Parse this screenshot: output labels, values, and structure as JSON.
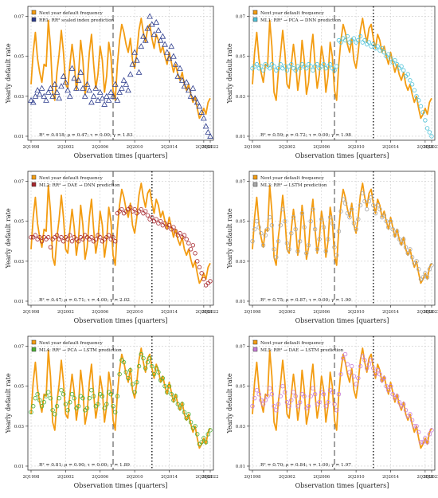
{
  "figure": {
    "ylabel": "Yearly default rate",
    "xlabel": "Observation times [quarters]"
  },
  "colors": {
    "actual": "#F39C12",
    "rr1": "#2B3A8C",
    "ml1": "#4FC3D9",
    "ml2": "#A6262C",
    "ml3": "#A8A8A8",
    "ml4": "#4CAF35",
    "ml5": "#C77BD6"
  },
  "chart_data": [
    {
      "type": "line",
      "panel": "RR1",
      "legend": [
        "Next year default frequency",
        "RR1: RR² scaled index prediction"
      ],
      "stats": "R² = 0.018; ρ = 0.47; τ = 0.00; γ = 1.83",
      "xticks": [
        "2Q1998",
        "2Q2002",
        "2Q2006",
        "2Q2010",
        "2Q2014",
        "2Q2018",
        "2Q2022"
      ],
      "yticks": [
        "0.01",
        "0.03",
        "0.05",
        "0.07"
      ],
      "ylim": [
        0.008,
        0.075
      ],
      "marker": "triangle",
      "show_dotted": false,
      "actual": [
        0.036,
        0.052,
        0.062,
        0.049,
        0.042,
        0.037,
        0.046,
        0.045,
        0.068,
        0.055,
        0.032,
        0.028,
        0.042,
        0.051,
        0.063,
        0.052,
        0.036,
        0.034,
        0.046,
        0.056,
        0.047,
        0.033,
        0.041,
        0.058,
        0.048,
        0.031,
        0.037,
        0.052,
        0.061,
        0.046,
        0.034,
        0.041,
        0.055,
        0.048,
        0.032,
        0.04,
        0.057,
        0.05,
        0.033,
        0.028,
        0.046,
        0.058,
        0.066,
        0.062,
        0.056,
        0.052,
        0.059,
        0.048,
        0.044,
        0.052,
        0.063,
        0.069,
        0.062,
        0.057,
        0.064,
        0.066,
        0.059,
        0.054,
        0.061,
        0.058,
        0.052,
        0.055,
        0.05,
        0.046,
        0.052,
        0.047,
        0.042,
        0.046,
        0.041,
        0.038,
        0.042,
        0.036,
        0.033,
        0.036,
        0.031,
        0.027,
        0.03,
        0.024,
        0.019,
        0.021,
        0.024,
        0.021,
        0.027,
        0.029
      ],
      "pred": [
        0.028,
        0.027,
        0.03,
        0.033,
        0.031,
        0.034,
        0.03,
        0.028,
        0.032,
        0.034,
        0.03,
        0.036,
        0.032,
        0.029,
        0.035,
        0.04,
        0.037,
        0.033,
        0.03,
        0.044,
        0.039,
        0.034,
        0.038,
        0.042,
        0.034,
        0.03,
        0.036,
        0.033,
        0.027,
        0.03,
        0.034,
        0.028,
        0.032,
        0.029,
        0.026,
        0.03,
        0.028,
        0.032,
        0.03,
        0.036,
        0.028,
        0.032,
        0.034,
        0.038,
        0.036,
        0.033,
        0.041,
        0.046,
        0.052,
        0.048,
        0.042,
        0.055,
        0.06,
        0.058,
        0.064,
        0.07,
        0.066,
        0.061,
        0.067,
        0.063,
        0.058,
        0.06,
        0.056,
        0.052,
        0.049,
        0.055,
        0.05,
        0.046,
        0.04,
        0.044,
        0.038,
        0.035,
        0.037,
        0.033,
        0.03,
        0.034,
        0.029,
        0.027,
        0.025,
        0.022,
        0.019,
        0.015,
        0.012,
        0.01
      ]
    },
    {
      "type": "line",
      "panel": "ML1",
      "legend": [
        "Next year default frequency",
        "ML1: RR² → PCA → DNN prediction"
      ],
      "stats": "R² = 0.59; ρ = 0.72; τ = 0.00; γ = 1.98",
      "xticks": [
        "2Q1998",
        "2Q2002",
        "2Q2006",
        "2Q2010",
        "2Q2014",
        "2Q2018",
        "2Q2022"
      ],
      "yticks": [
        "0.01",
        "0.03",
        "0.05",
        "0.07"
      ],
      "ylim": [
        0.008,
        0.075
      ],
      "marker": "circle",
      "show_dotted": true,
      "actual": [
        0.036,
        0.052,
        0.062,
        0.049,
        0.042,
        0.037,
        0.046,
        0.045,
        0.068,
        0.055,
        0.032,
        0.028,
        0.042,
        0.051,
        0.063,
        0.052,
        0.036,
        0.034,
        0.046,
        0.056,
        0.047,
        0.033,
        0.041,
        0.058,
        0.048,
        0.031,
        0.037,
        0.052,
        0.061,
        0.046,
        0.034,
        0.041,
        0.055,
        0.048,
        0.032,
        0.04,
        0.057,
        0.05,
        0.033,
        0.028,
        0.046,
        0.058,
        0.066,
        0.062,
        0.056,
        0.052,
        0.059,
        0.048,
        0.044,
        0.052,
        0.063,
        0.069,
        0.062,
        0.057,
        0.064,
        0.066,
        0.059,
        0.054,
        0.061,
        0.058,
        0.052,
        0.055,
        0.05,
        0.046,
        0.052,
        0.047,
        0.042,
        0.046,
        0.041,
        0.038,
        0.042,
        0.036,
        0.033,
        0.036,
        0.031,
        0.027,
        0.03,
        0.024,
        0.019,
        0.021,
        0.024,
        0.021,
        0.027,
        0.029
      ],
      "pred": [
        0.044,
        0.045,
        0.046,
        0.044,
        0.045,
        0.043,
        0.046,
        0.045,
        0.044,
        0.046,
        0.045,
        0.043,
        0.044,
        0.046,
        0.044,
        0.045,
        0.043,
        0.045,
        0.046,
        0.044,
        0.043,
        0.045,
        0.044,
        0.046,
        0.045,
        0.044,
        0.046,
        0.045,
        0.043,
        0.045,
        0.046,
        0.044,
        0.045,
        0.046,
        0.044,
        0.045,
        0.046,
        0.044,
        0.043,
        0.045,
        0.058,
        0.057,
        0.059,
        0.058,
        0.06,
        0.057,
        0.058,
        0.059,
        0.057,
        0.058,
        0.06,
        0.057,
        0.058,
        0.056,
        0.057,
        0.055,
        0.056,
        0.054,
        0.055,
        0.053,
        0.054,
        0.052,
        0.05,
        0.051,
        0.049,
        0.047,
        0.048,
        0.046,
        0.044,
        0.045,
        0.043,
        0.04,
        0.041,
        0.038,
        0.036,
        0.033,
        0.03,
        0.028,
        0.025,
        0.022,
        0.018,
        0.014,
        0.012,
        0.01
      ]
    },
    {
      "type": "line",
      "panel": "ML2",
      "legend": [
        "Next year default frequency",
        "ML2: RR² → DAE → DNN prediction"
      ],
      "stats": "R² = 0.47; ρ = 0.71; τ = 4.00; γ = 2.02",
      "xticks": [
        "2Q1998",
        "2Q2002",
        "2Q2006",
        "2Q2010",
        "2Q2014",
        "2Q2018",
        "2Q2022"
      ],
      "yticks": [
        "0.01",
        "0.03",
        "0.05",
        "0.07"
      ],
      "ylim": [
        0.008,
        0.075
      ],
      "marker": "circle",
      "show_dotted": true,
      "actual": [
        0.036,
        0.052,
        0.062,
        0.049,
        0.042,
        0.037,
        0.046,
        0.045,
        0.068,
        0.055,
        0.032,
        0.028,
        0.042,
        0.051,
        0.063,
        0.052,
        0.036,
        0.034,
        0.046,
        0.056,
        0.047,
        0.033,
        0.041,
        0.058,
        0.048,
        0.031,
        0.037,
        0.052,
        0.061,
        0.046,
        0.034,
        0.041,
        0.055,
        0.048,
        0.032,
        0.04,
        0.057,
        0.05,
        0.033,
        0.028,
        0.046,
        0.058,
        0.066,
        0.062,
        0.056,
        0.052,
        0.059,
        0.048,
        0.044,
        0.052,
        0.063,
        0.069,
        0.062,
        0.057,
        0.064,
        0.066,
        0.059,
        0.054,
        0.061,
        0.058,
        0.052,
        0.055,
        0.05,
        0.046,
        0.052,
        0.047,
        0.042,
        0.046,
        0.041,
        0.038,
        0.042,
        0.036,
        0.033,
        0.036,
        0.031,
        0.027,
        0.03,
        0.024,
        0.019,
        0.021,
        0.024,
        0.021,
        0.027,
        0.029
      ],
      "pred": [
        0.042,
        0.042,
        0.043,
        0.041,
        0.042,
        0.04,
        0.042,
        0.041,
        0.042,
        0.037,
        0.041,
        0.042,
        0.043,
        0.041,
        0.042,
        0.04,
        0.042,
        0.041,
        0.043,
        0.04,
        0.042,
        0.041,
        0.04,
        0.042,
        0.041,
        0.043,
        0.042,
        0.041,
        0.042,
        0.04,
        0.041,
        0.043,
        0.042,
        0.04,
        0.041,
        0.042,
        0.043,
        0.041,
        0.042,
        0.04,
        0.054,
        0.055,
        0.056,
        0.054,
        0.055,
        0.056,
        0.057,
        0.055,
        0.056,
        0.054,
        0.055,
        0.056,
        0.054,
        0.055,
        0.053,
        0.051,
        0.052,
        0.05,
        0.051,
        0.049,
        0.05,
        0.048,
        0.049,
        0.047,
        0.048,
        0.046,
        0.047,
        0.045,
        0.043,
        0.044,
        0.042,
        0.043,
        0.041,
        0.039,
        0.036,
        0.038,
        0.034,
        0.03,
        0.027,
        0.024,
        0.021,
        0.018,
        0.019,
        0.02
      ]
    },
    {
      "type": "line",
      "panel": "ML3",
      "legend": [
        "Next year default frequency",
        "ML3: RR² → LSTM prediction"
      ],
      "stats": "R² = 0.75; ρ = 0.87; τ = 0.00; γ = 1.90",
      "xticks": [
        "2Q1998",
        "2Q2002",
        "2Q2006",
        "2Q2010",
        "2Q2014",
        "2Q2018",
        "2Q2022"
      ],
      "yticks": [
        "0.01",
        "0.03",
        "0.05",
        "0.07"
      ],
      "ylim": [
        0.008,
        0.075
      ],
      "marker": "circle",
      "show_dotted": true,
      "actual": [
        0.036,
        0.052,
        0.062,
        0.049,
        0.042,
        0.037,
        0.046,
        0.045,
        0.068,
        0.055,
        0.032,
        0.028,
        0.042,
        0.051,
        0.063,
        0.052,
        0.036,
        0.034,
        0.046,
        0.056,
        0.047,
        0.033,
        0.041,
        0.058,
        0.048,
        0.031,
        0.037,
        0.052,
        0.061,
        0.046,
        0.034,
        0.041,
        0.055,
        0.048,
        0.032,
        0.04,
        0.057,
        0.05,
        0.033,
        0.028,
        0.046,
        0.058,
        0.066,
        0.062,
        0.056,
        0.052,
        0.059,
        0.048,
        0.044,
        0.052,
        0.063,
        0.069,
        0.062,
        0.057,
        0.064,
        0.066,
        0.059,
        0.054,
        0.061,
        0.058,
        0.052,
        0.055,
        0.05,
        0.046,
        0.052,
        0.047,
        0.042,
        0.046,
        0.041,
        0.038,
        0.042,
        0.036,
        0.033,
        0.036,
        0.031,
        0.027,
        0.03,
        0.024,
        0.019,
        0.021,
        0.024,
        0.021,
        0.027,
        0.029
      ],
      "pred": [
        0.04,
        0.046,
        0.05,
        0.047,
        0.044,
        0.038,
        0.043,
        0.046,
        0.052,
        0.048,
        0.036,
        0.032,
        0.04,
        0.048,
        0.056,
        0.05,
        0.039,
        0.036,
        0.044,
        0.052,
        0.046,
        0.035,
        0.04,
        0.054,
        0.047,
        0.034,
        0.038,
        0.05,
        0.056,
        0.046,
        0.036,
        0.041,
        0.051,
        0.047,
        0.035,
        0.041,
        0.052,
        0.049,
        0.037,
        0.033,
        0.045,
        0.055,
        0.061,
        0.059,
        0.054,
        0.052,
        0.056,
        0.049,
        0.046,
        0.051,
        0.058,
        0.064,
        0.06,
        0.056,
        0.06,
        0.062,
        0.058,
        0.054,
        0.058,
        0.056,
        0.052,
        0.053,
        0.05,
        0.047,
        0.05,
        0.046,
        0.043,
        0.045,
        0.041,
        0.039,
        0.041,
        0.037,
        0.034,
        0.036,
        0.032,
        0.029,
        0.03,
        0.026,
        0.021,
        0.022,
        0.024,
        0.022,
        0.026,
        0.028
      ]
    },
    {
      "type": "line",
      "panel": "ML4",
      "legend": [
        "Next year default frequency",
        "ML4: RR² → PCA → LSTM prediction"
      ],
      "stats": "R² = 0.81; ρ = 0.90; τ = 0.00; γ = 1.89",
      "xticks": [
        "2Q1998",
        "2Q2002",
        "2Q2006",
        "2Q2010",
        "2Q2014",
        "2Q2018",
        "2Q2022"
      ],
      "yticks": [
        "0.01",
        "0.03",
        "0.05",
        "0.07"
      ],
      "ylim": [
        0.008,
        0.075
      ],
      "marker": "circle",
      "show_dotted": true,
      "actual": [
        0.036,
        0.052,
        0.062,
        0.049,
        0.042,
        0.037,
        0.046,
        0.045,
        0.068,
        0.055,
        0.032,
        0.028,
        0.042,
        0.051,
        0.063,
        0.052,
        0.036,
        0.034,
        0.046,
        0.056,
        0.047,
        0.033,
        0.041,
        0.058,
        0.048,
        0.031,
        0.037,
        0.052,
        0.061,
        0.046,
        0.034,
        0.041,
        0.055,
        0.048,
        0.032,
        0.04,
        0.057,
        0.05,
        0.033,
        0.028,
        0.046,
        0.058,
        0.066,
        0.062,
        0.056,
        0.052,
        0.059,
        0.048,
        0.044,
        0.052,
        0.063,
        0.069,
        0.062,
        0.057,
        0.064,
        0.066,
        0.059,
        0.054,
        0.061,
        0.058,
        0.052,
        0.055,
        0.05,
        0.046,
        0.052,
        0.047,
        0.042,
        0.046,
        0.041,
        0.038,
        0.042,
        0.036,
        0.033,
        0.036,
        0.031,
        0.027,
        0.03,
        0.024,
        0.019,
        0.021,
        0.024,
        0.021,
        0.027,
        0.029
      ],
      "pred": [
        0.037,
        0.04,
        0.044,
        0.046,
        0.043,
        0.04,
        0.042,
        0.045,
        0.047,
        0.044,
        0.038,
        0.036,
        0.04,
        0.044,
        0.048,
        0.046,
        0.041,
        0.038,
        0.042,
        0.046,
        0.044,
        0.039,
        0.04,
        0.045,
        0.044,
        0.038,
        0.039,
        0.044,
        0.048,
        0.045,
        0.04,
        0.041,
        0.046,
        0.045,
        0.039,
        0.041,
        0.047,
        0.046,
        0.04,
        0.037,
        0.045,
        0.056,
        0.063,
        0.062,
        0.057,
        0.054,
        0.058,
        0.051,
        0.047,
        0.052,
        0.06,
        0.066,
        0.064,
        0.059,
        0.062,
        0.064,
        0.06,
        0.056,
        0.059,
        0.057,
        0.053,
        0.054,
        0.05,
        0.047,
        0.05,
        0.046,
        0.043,
        0.045,
        0.041,
        0.039,
        0.041,
        0.037,
        0.034,
        0.036,
        0.032,
        0.029,
        0.03,
        0.026,
        0.021,
        0.022,
        0.024,
        0.022,
        0.026,
        0.028
      ]
    },
    {
      "type": "line",
      "panel": "ML5",
      "legend": [
        "Next year default frequency",
        "ML5: RR² → DAE → LSTM prediction"
      ],
      "stats": "R² = 0.70; ρ = 0.84; τ = 1.00; γ = 1.97",
      "xticks": [
        "2Q1998",
        "2Q2002",
        "2Q2006",
        "2Q2010",
        "2Q2014",
        "2Q2018",
        "2Q2022"
      ],
      "yticks": [
        "0.01",
        "0.03",
        "0.05",
        "0.07"
      ],
      "ylim": [
        0.008,
        0.075
      ],
      "marker": "circle",
      "show_dotted": true,
      "actual": [
        0.036,
        0.052,
        0.062,
        0.049,
        0.042,
        0.037,
        0.046,
        0.045,
        0.068,
        0.055,
        0.032,
        0.028,
        0.042,
        0.051,
        0.063,
        0.052,
        0.036,
        0.034,
        0.046,
        0.056,
        0.047,
        0.033,
        0.041,
        0.058,
        0.048,
        0.031,
        0.037,
        0.052,
        0.061,
        0.046,
        0.034,
        0.041,
        0.055,
        0.048,
        0.032,
        0.04,
        0.057,
        0.05,
        0.033,
        0.028,
        0.046,
        0.058,
        0.066,
        0.062,
        0.056,
        0.052,
        0.059,
        0.048,
        0.044,
        0.052,
        0.063,
        0.069,
        0.062,
        0.057,
        0.064,
        0.066,
        0.059,
        0.054,
        0.061,
        0.058,
        0.052,
        0.055,
        0.05,
        0.046,
        0.052,
        0.047,
        0.042,
        0.046,
        0.041,
        0.038,
        0.042,
        0.036,
        0.033,
        0.036,
        0.031,
        0.027,
        0.03,
        0.024,
        0.019,
        0.021,
        0.024,
        0.021,
        0.027,
        0.029
      ],
      "pred": [
        0.04,
        0.044,
        0.048,
        0.046,
        0.043,
        0.041,
        0.043,
        0.045,
        0.049,
        0.046,
        0.04,
        0.038,
        0.041,
        0.045,
        0.05,
        0.047,
        0.042,
        0.04,
        0.043,
        0.047,
        0.045,
        0.04,
        0.042,
        0.046,
        0.045,
        0.039,
        0.04,
        0.045,
        0.049,
        0.046,
        0.041,
        0.042,
        0.047,
        0.046,
        0.04,
        0.042,
        0.048,
        0.047,
        0.041,
        0.038,
        0.046,
        0.056,
        0.064,
        0.066,
        0.061,
        0.057,
        0.06,
        0.055,
        0.051,
        0.054,
        0.06,
        0.065,
        0.063,
        0.059,
        0.061,
        0.063,
        0.059,
        0.056,
        0.058,
        0.056,
        0.053,
        0.054,
        0.05,
        0.048,
        0.05,
        0.046,
        0.044,
        0.045,
        0.042,
        0.04,
        0.041,
        0.038,
        0.035,
        0.036,
        0.033,
        0.03,
        0.03,
        0.027,
        0.022,
        0.022,
        0.024,
        0.022,
        0.026,
        0.028
      ]
    }
  ]
}
